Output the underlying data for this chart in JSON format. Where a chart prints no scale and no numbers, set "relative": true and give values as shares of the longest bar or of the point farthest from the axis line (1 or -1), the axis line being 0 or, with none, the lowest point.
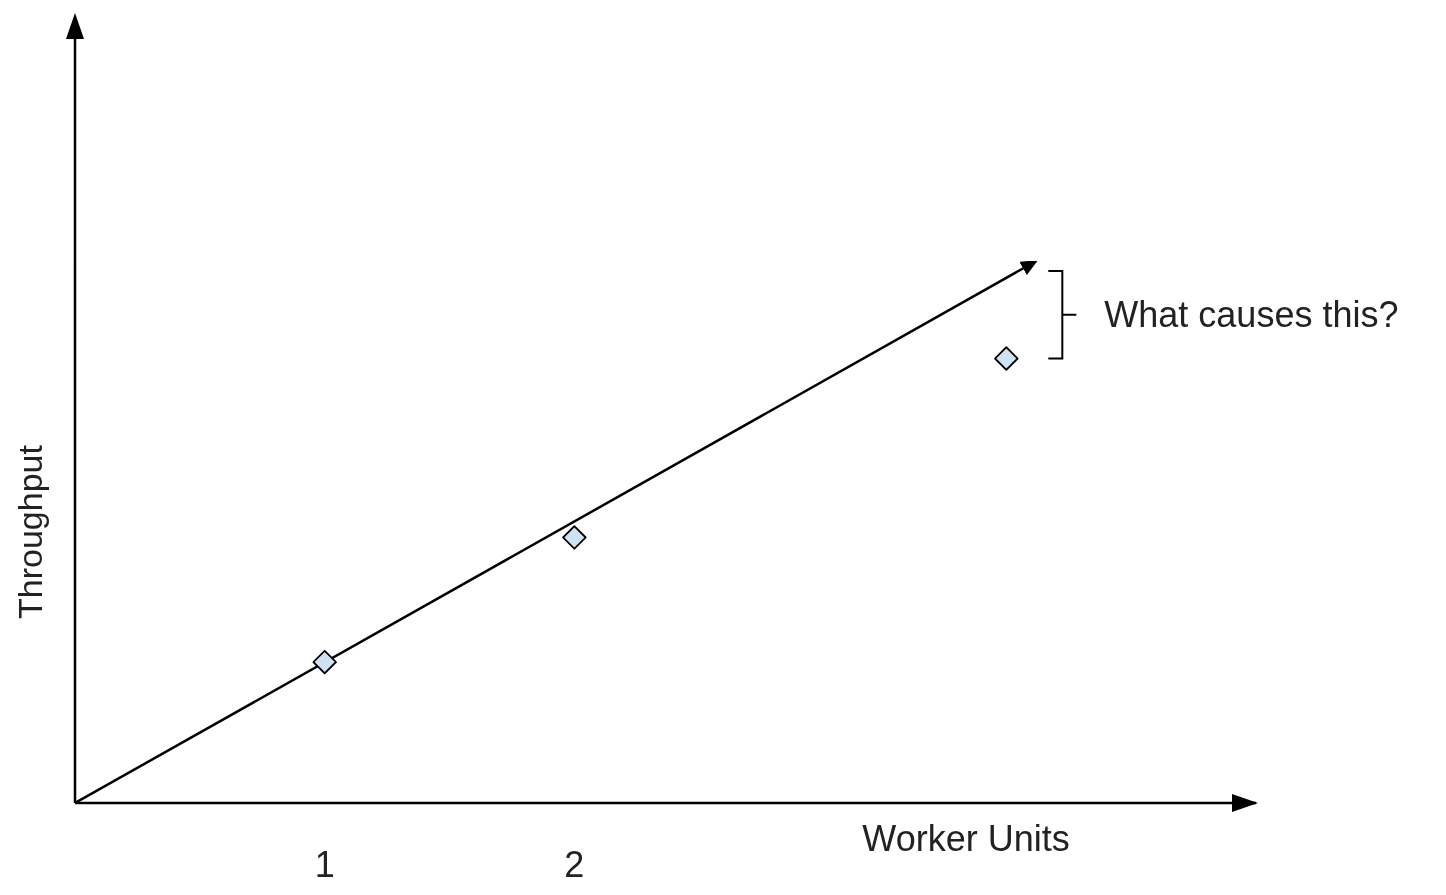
{
  "chart_data": {
    "type": "scatter",
    "xlabel": "Worker Units",
    "ylabel": "Throughput",
    "relative": true,
    "xlim": [
      0,
      4.73
    ],
    "xticks": [
      1,
      2
    ],
    "annotations": [
      "What causes this?"
    ],
    "series": [
      {
        "type": "line",
        "x": [
          0,
          3.85
        ],
        "values": [
          0,
          1
        ],
        "color": "#000000",
        "marker": "none",
        "line_style": "solid"
      },
      {
        "x": [
          1,
          2,
          3.73
        ],
        "values": [
          0.26,
          0.49,
          0.82
        ],
        "color": "#cfe2f3",
        "marker": "diamond"
      }
    ]
  }
}
